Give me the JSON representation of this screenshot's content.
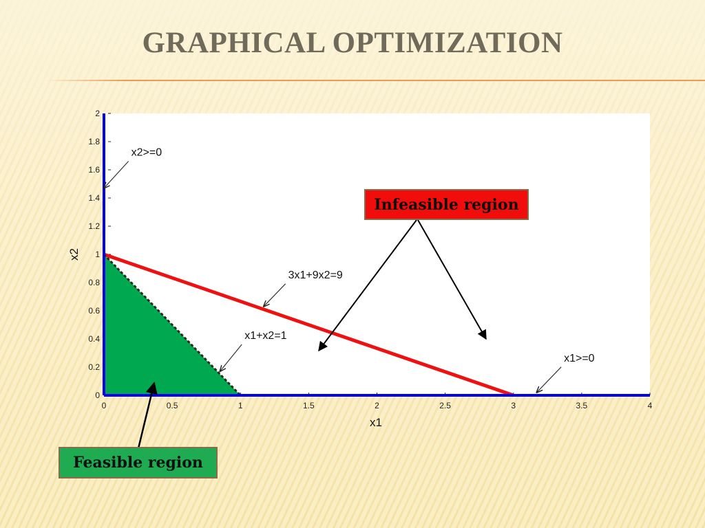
{
  "slide": {
    "title": "GRAPHICAL OPTIMIZATION"
  },
  "callouts": {
    "infeasible": "Infeasible region",
    "feasible": "Feasible region"
  },
  "colors": {
    "axis_blue": "#0000ee",
    "constraint_red": "#ee1111",
    "feasible_green": "#00a84f",
    "dashed_line": "#2b2b1a"
  },
  "chart_data": {
    "type": "line",
    "xlabel": "x1",
    "ylabel": "x2",
    "xlim": [
      0,
      4
    ],
    "ylim": [
      0,
      2
    ],
    "xticks": [
      0,
      0.5,
      1,
      1.5,
      2,
      2.5,
      3,
      3.5,
      4
    ],
    "yticks": [
      0,
      0.2,
      0.4,
      0.6,
      0.8,
      1,
      1.2,
      1.4,
      1.6,
      1.8,
      2
    ],
    "series": [
      {
        "name": "3x1+9x2=9",
        "x": [
          0,
          3
        ],
        "y": [
          1,
          0
        ]
      },
      {
        "name": "x1+x2=1",
        "x": [
          0,
          1
        ],
        "y": [
          1,
          0
        ]
      },
      {
        "name": "x1>=0",
        "x": [
          0,
          4
        ],
        "y": [
          0,
          0
        ]
      },
      {
        "name": "x2>=0",
        "x": [
          0,
          0
        ],
        "y": [
          0,
          2
        ]
      }
    ],
    "feasible_region": {
      "x": [
        0,
        1,
        0
      ],
      "y": [
        0,
        0,
        1
      ]
    },
    "annotations": [
      {
        "text": "x2>=0",
        "x": 0.2,
        "y": 1.7,
        "arrow_to": [
          0.0,
          1.47
        ]
      },
      {
        "text": "3x1+9x2=9",
        "x": 1.35,
        "y": 0.83,
        "arrow_to": [
          1.17,
          0.63
        ]
      },
      {
        "text": "x1+x2=1",
        "x": 1.03,
        "y": 0.4,
        "arrow_to": [
          0.85,
          0.17
        ]
      },
      {
        "text": "x1>=0",
        "x": 3.37,
        "y": 0.24,
        "arrow_to": [
          3.17,
          0.02
        ]
      }
    ]
  }
}
